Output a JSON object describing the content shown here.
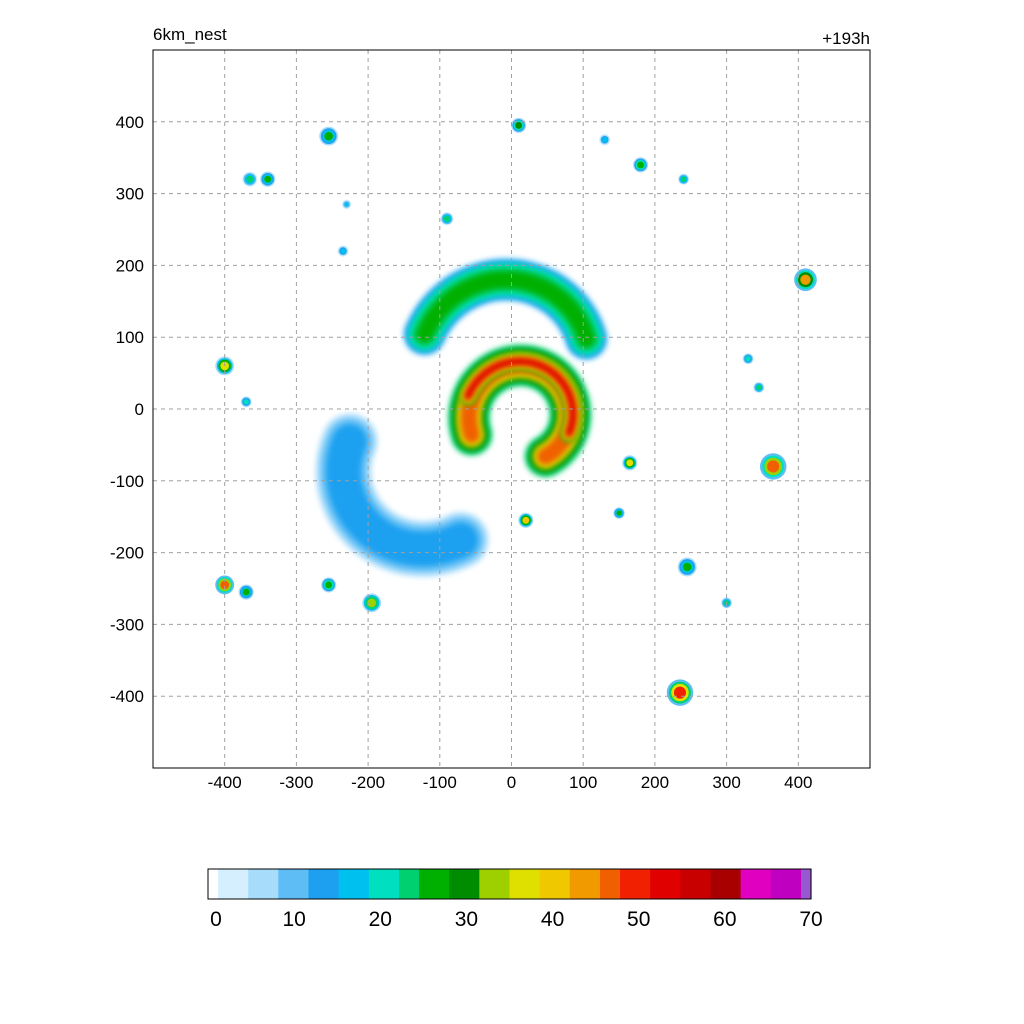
{
  "title_left": "6km_nest",
  "title_right": "+193h",
  "colors": {
    "ramp": [
      "#ffffff",
      "#d6efff",
      "#a8dcfb",
      "#5fbdf5",
      "#1ea0f0",
      "#00c0f0",
      "#00e0c0",
      "#00d070",
      "#00b000",
      "#008c00",
      "#9ed000",
      "#e0e000",
      "#f0c800",
      "#f09a00",
      "#f06000",
      "#f02000",
      "#e00000",
      "#c80000",
      "#a80000",
      "#e000c0",
      "#c000c0",
      "#9858d0"
    ],
    "grid": "#a0a0a0"
  },
  "chart_data": {
    "type": "heatmap",
    "title": "",
    "xlabel": "",
    "ylabel": "",
    "xlim": [
      -500,
      500
    ],
    "ylim": [
      -500,
      500
    ],
    "xticks": [
      -400,
      -300,
      -200,
      -100,
      0,
      100,
      200,
      300,
      400
    ],
    "yticks": [
      -400,
      -300,
      -200,
      -100,
      0,
      100,
      200,
      300,
      400
    ],
    "xtick_labels": [
      "-400",
      "-300",
      "-200",
      "-100",
      "0",
      "100",
      "200",
      "300",
      "400"
    ],
    "ytick_labels": [
      "-400",
      "-300",
      "-200",
      "-100",
      "0",
      "100",
      "200",
      "300",
      "400"
    ],
    "grid": true,
    "colorbar": {
      "min": 0,
      "max": 70,
      "ticks": [
        0,
        10,
        20,
        30,
        40,
        50,
        60,
        70
      ],
      "tick_labels": [
        "0",
        "10",
        "20",
        "30",
        "40",
        "50",
        "60",
        "70"
      ]
    },
    "features": [
      {
        "kind": "eyewall-arc",
        "cx": 15,
        "cy": -10,
        "r": 70,
        "start_deg": 300,
        "end_deg": 560,
        "width": 60,
        "value": 45
      },
      {
        "kind": "eyewall-arc",
        "cx": 15,
        "cy": -10,
        "r": 75,
        "start_deg": 340,
        "end_deg": 520,
        "width": 25,
        "value": 52
      },
      {
        "kind": "spiral-band",
        "cx": -130,
        "cy": -80,
        "r": 110,
        "start_deg": 160,
        "end_deg": 300,
        "width": 80,
        "value": 14
      },
      {
        "kind": "spiral-band",
        "cx": 0,
        "cy": 60,
        "r": 120,
        "start_deg": 20,
        "end_deg": 160,
        "width": 60,
        "value": 28
      },
      {
        "kind": "cell",
        "x": 410,
        "y": 180,
        "r": 12,
        "value": 42
      },
      {
        "kind": "cell",
        "x": 365,
        "y": -80,
        "r": 14,
        "value": 48
      },
      {
        "kind": "cell",
        "x": 235,
        "y": -395,
        "r": 14,
        "value": 50
      },
      {
        "kind": "cell",
        "x": -400,
        "y": 60,
        "r": 10,
        "value": 38
      },
      {
        "kind": "cell",
        "x": -400,
        "y": -245,
        "r": 10,
        "value": 46
      },
      {
        "kind": "cell",
        "x": -195,
        "y": -270,
        "r": 10,
        "value": 34
      },
      {
        "kind": "cell",
        "x": -255,
        "y": 380,
        "r": 10,
        "value": 26
      },
      {
        "kind": "cell",
        "x": -365,
        "y": 320,
        "r": 8,
        "value": 24
      },
      {
        "kind": "cell",
        "x": -340,
        "y": 320,
        "r": 8,
        "value": 26
      },
      {
        "kind": "cell",
        "x": 10,
        "y": 395,
        "r": 8,
        "value": 30
      },
      {
        "kind": "cell",
        "x": 180,
        "y": 340,
        "r": 8,
        "value": 28
      },
      {
        "kind": "cell",
        "x": 245,
        "y": -220,
        "r": 10,
        "value": 26
      },
      {
        "kind": "cell",
        "x": 20,
        "y": -155,
        "r": 8,
        "value": 40
      },
      {
        "kind": "cell",
        "x": 165,
        "y": -75,
        "r": 8,
        "value": 38
      },
      {
        "kind": "cell",
        "x": -90,
        "y": 265,
        "r": 7,
        "value": 24
      },
      {
        "kind": "cell",
        "x": -255,
        "y": -245,
        "r": 8,
        "value": 28
      },
      {
        "kind": "cell",
        "x": -370,
        "y": -255,
        "r": 8,
        "value": 26
      },
      {
        "kind": "cell",
        "x": 300,
        "y": -270,
        "r": 6,
        "value": 24
      },
      {
        "kind": "cell",
        "x": 150,
        "y": -145,
        "r": 6,
        "value": 26
      },
      {
        "kind": "cell",
        "x": 345,
        "y": 30,
        "r": 6,
        "value": 22
      },
      {
        "kind": "cell",
        "x": 330,
        "y": 70,
        "r": 6,
        "value": 20
      },
      {
        "kind": "cell",
        "x": -235,
        "y": 220,
        "r": 6,
        "value": 18
      },
      {
        "kind": "cell",
        "x": -370,
        "y": 10,
        "r": 6,
        "value": 20
      },
      {
        "kind": "cell",
        "x": -230,
        "y": 285,
        "r": 5,
        "value": 16
      },
      {
        "kind": "cell",
        "x": 240,
        "y": 320,
        "r": 6,
        "value": 22
      },
      {
        "kind": "cell",
        "x": 130,
        "y": 375,
        "r": 6,
        "value": 18
      }
    ]
  }
}
